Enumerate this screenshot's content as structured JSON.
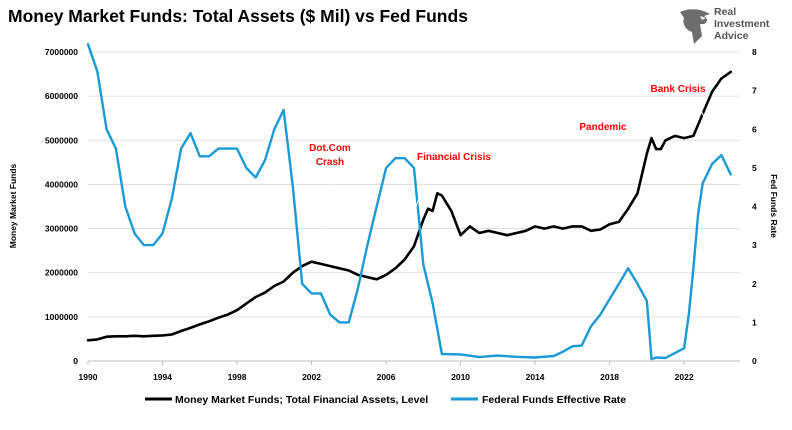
{
  "title": "Money Market Funds: Total Assets ($ Mil) vs Fed Funds",
  "logo": {
    "line1": "Real",
    "line2": "Investment",
    "line3": "Advice"
  },
  "colors": {
    "mmf": "#000000",
    "fed": "#1a9ad6",
    "annotation": "#ff0000",
    "grid": "#d9d9d9"
  },
  "chart_data": {
    "type": "line",
    "title": "Money Market Funds: Total Assets ($ Mil) vs Fed Funds",
    "xlabel": "",
    "ylabel": "Money Market Funds",
    "y2label": "Fed Funds Rate",
    "xlim": [
      1990,
      2025
    ],
    "ylim": [
      0,
      7000000
    ],
    "y2lim": [
      0,
      8
    ],
    "x_ticks": [
      1990,
      1994,
      1998,
      2002,
      2006,
      2010,
      2014,
      2018,
      2022
    ],
    "y_ticks": [
      0,
      1000000,
      2000000,
      3000000,
      4000000,
      5000000,
      6000000,
      7000000
    ],
    "y_tick_labels": [
      "0",
      "1000000",
      "2000000",
      "3000000",
      "4000000",
      "5000000",
      "6000000",
      "7000000"
    ],
    "y2_ticks": [
      0,
      1,
      2,
      3,
      4,
      5,
      6,
      7,
      8
    ],
    "grid": true,
    "legend_position": "bottom",
    "series": [
      {
        "name": "Money Market Funds; Total Financial Assets, Level",
        "axis": "left",
        "x": [
          1990,
          1990.5,
          1991,
          1991.5,
          1992,
          1992.5,
          1993,
          1993.5,
          1994,
          1994.5,
          1995,
          1995.5,
          1996,
          1996.5,
          1997,
          1997.5,
          1998,
          1998.5,
          1999,
          1999.5,
          2000,
          2000.5,
          2001,
          2001.5,
          2002,
          2002.5,
          2003,
          2003.5,
          2004,
          2004.5,
          2005,
          2005.5,
          2006,
          2006.5,
          2007,
          2007.5,
          2008,
          2008.25,
          2008.5,
          2008.75,
          2009,
          2009.5,
          2010,
          2010.5,
          2011,
          2011.5,
          2012,
          2012.5,
          2013,
          2013.5,
          2014,
          2014.5,
          2015,
          2015.5,
          2016,
          2016.5,
          2017,
          2017.5,
          2018,
          2018.5,
          2019,
          2019.5,
          2020,
          2020.25,
          2020.5,
          2020.75,
          2021,
          2021.5,
          2022,
          2022.5,
          2023,
          2023.5,
          2024,
          2024.5
        ],
        "values": [
          470000,
          490000,
          550000,
          560000,
          560000,
          570000,
          560000,
          570000,
          580000,
          600000,
          680000,
          750000,
          830000,
          900000,
          980000,
          1050000,
          1150000,
          1300000,
          1450000,
          1550000,
          1700000,
          1800000,
          2000000,
          2150000,
          2250000,
          2200000,
          2150000,
          2100000,
          2050000,
          1950000,
          1900000,
          1850000,
          1950000,
          2100000,
          2300000,
          2600000,
          3200000,
          3450000,
          3400000,
          3800000,
          3750000,
          3400000,
          2850000,
          3050000,
          2900000,
          2950000,
          2900000,
          2850000,
          2900000,
          2950000,
          3050000,
          3000000,
          3050000,
          3000000,
          3050000,
          3050000,
          2950000,
          2980000,
          3100000,
          3150000,
          3450000,
          3800000,
          4700000,
          5050000,
          4800000,
          4800000,
          5000000,
          5100000,
          5050000,
          5100000,
          5600000,
          6100000,
          6400000,
          6550000
        ]
      },
      {
        "name": "Federal Funds Effective Rate",
        "axis": "right",
        "x": [
          1990,
          1990.5,
          1991,
          1991.5,
          1992,
          1992.5,
          1993,
          1993.5,
          1994,
          1994.5,
          1995,
          1995.5,
          1996,
          1996.5,
          1997,
          1997.5,
          1998,
          1998.5,
          1999,
          1999.5,
          2000,
          2000.5,
          2001,
          2001.5,
          2002,
          2002.5,
          2003,
          2003.5,
          2004,
          2004.5,
          2005,
          2005.5,
          2006,
          2006.5,
          2007,
          2007.5,
          2008,
          2008.5,
          2009,
          2010,
          2011,
          2012,
          2013,
          2014,
          2015,
          2015.5,
          2016,
          2016.5,
          2017,
          2017.5,
          2018,
          2018.5,
          2019,
          2019.5,
          2020,
          2020.25,
          2020.5,
          2021,
          2022,
          2022.25,
          2022.5,
          2022.75,
          2023,
          2023.5,
          2024,
          2024.5
        ],
        "values": [
          8.2,
          7.5,
          6.0,
          5.5,
          4.0,
          3.3,
          3.0,
          3.0,
          3.3,
          4.2,
          5.5,
          5.9,
          5.3,
          5.3,
          5.5,
          5.5,
          5.5,
          5.0,
          4.75,
          5.2,
          6.0,
          6.5,
          4.5,
          2.0,
          1.75,
          1.75,
          1.2,
          1.0,
          1.0,
          1.9,
          3.0,
          4.0,
          5.0,
          5.25,
          5.25,
          5.0,
          2.5,
          1.5,
          0.18,
          0.17,
          0.1,
          0.14,
          0.11,
          0.09,
          0.13,
          0.24,
          0.38,
          0.4,
          0.9,
          1.2,
          1.6,
          2.0,
          2.4,
          2.0,
          1.55,
          0.05,
          0.09,
          0.08,
          0.33,
          1.2,
          2.4,
          3.8,
          4.6,
          5.1,
          5.33,
          4.83
        ]
      }
    ],
    "annotations": [
      {
        "lines": [
          "Dot.Com",
          "Crash"
        ],
        "x": 2002,
        "y": 2200000
      },
      {
        "lines": [
          "Financial Crisis"
        ],
        "x": 2008,
        "y": 3500000
      },
      {
        "lines": [
          "Pandemic"
        ],
        "x": 2020,
        "y": 5100000
      },
      {
        "lines": [
          "Bank Crisis"
        ],
        "x": 2023,
        "y": 5600000
      }
    ]
  }
}
